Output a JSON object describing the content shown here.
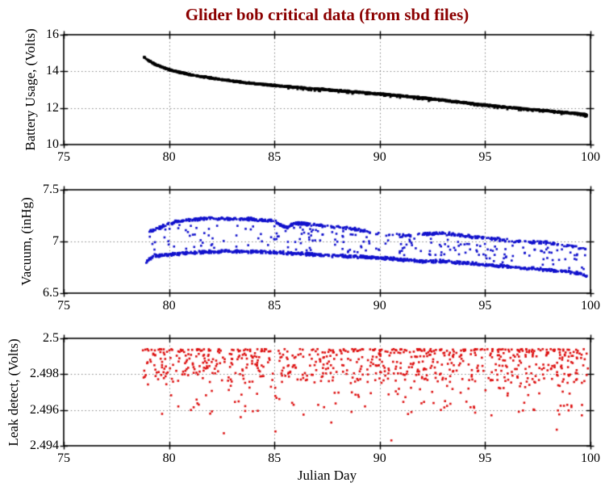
{
  "figure": {
    "title": "Glider bob critical data (from sbd files)",
    "title_color": "#8b0000",
    "background": "#ffffff",
    "grid_color": "#7d7d7d",
    "xlabel": "Julian Day"
  },
  "chart_data": [
    {
      "type": "scatter",
      "name": "battery_usage",
      "ylabel": "Battery Usage, (Volts)",
      "color": "#000000",
      "marker_px": 2.8,
      "xlim": [
        75,
        100
      ],
      "ylim": [
        10,
        16
      ],
      "xticks": [
        75,
        80,
        85,
        90,
        95,
        100
      ],
      "xtick_labels": [
        "75",
        "80",
        "85",
        "90",
        "95",
        "100"
      ],
      "yticks": [
        10,
        12,
        14,
        16
      ],
      "ytick_labels": [
        "10",
        "12",
        "14",
        "16"
      ],
      "grid": true,
      "series": [
        {
          "name": "battery_volts",
          "kind": "trend",
          "seed": 101,
          "n": 1600,
          "x_start": 78.8,
          "x_end": 99.85,
          "noise": 0.032,
          "dropout": {
            "frac": 0.08,
            "min_x": 85,
            "amount": [
              0.02,
              0.1
            ]
          },
          "trend": [
            [
              78.8,
              14.8
            ],
            [
              79.0,
              14.62
            ],
            [
              79.3,
              14.4
            ],
            [
              79.6,
              14.26
            ],
            [
              80.0,
              14.09
            ],
            [
              80.3,
              14.0
            ],
            [
              81,
              13.82
            ],
            [
              82,
              13.63
            ],
            [
              83,
              13.47
            ],
            [
              84,
              13.33
            ],
            [
              85,
              13.23
            ],
            [
              86,
              13.13
            ],
            [
              87,
              13.04
            ],
            [
              88,
              12.95
            ],
            [
              89,
              12.86
            ],
            [
              90,
              12.77
            ],
            [
              91,
              12.66
            ],
            [
              92,
              12.55
            ],
            [
              93,
              12.43
            ],
            [
              94,
              12.29
            ],
            [
              95,
              12.16
            ],
            [
              96,
              12.04
            ],
            [
              97,
              11.94
            ],
            [
              98,
              11.84
            ],
            [
              99,
              11.73
            ],
            [
              99.85,
              11.63
            ]
          ]
        }
      ]
    },
    {
      "type": "scatter",
      "name": "vacuum",
      "ylabel": "Vacuum, (inHg)",
      "color": "#1111cc",
      "marker_px": 2.6,
      "xlim": [
        75,
        100
      ],
      "ylim": [
        6.5,
        7.5
      ],
      "xticks": [
        75,
        80,
        85,
        90,
        95,
        100
      ],
      "xtick_labels": [
        "75",
        "80",
        "85",
        "90",
        "95",
        "100"
      ],
      "yticks": [
        6.5,
        7,
        7.5
      ],
      "ytick_labels": [
        "6.5",
        "7",
        "7.5"
      ],
      "grid": true,
      "series": [
        {
          "name": "vac_lower",
          "kind": "trend",
          "seed": 202,
          "n": 880,
          "x_start": 78.85,
          "x_end": 99.85,
          "noise": 0.012,
          "trend": [
            [
              78.85,
              6.77
            ],
            [
              79.0,
              6.82
            ],
            [
              79.3,
              6.86
            ],
            [
              80,
              6.875
            ],
            [
              81,
              6.89
            ],
            [
              82,
              6.9
            ],
            [
              83,
              6.905
            ],
            [
              84,
              6.9
            ],
            [
              85,
              6.895
            ],
            [
              86,
              6.885
            ],
            [
              87,
              6.872
            ],
            [
              88,
              6.862
            ],
            [
              89,
              6.852
            ],
            [
              90,
              6.842
            ],
            [
              91,
              6.825
            ],
            [
              92,
              6.807
            ],
            [
              93,
              6.81
            ],
            [
              94,
              6.79
            ],
            [
              95,
              6.775
            ],
            [
              96,
              6.76
            ],
            [
              97,
              6.74
            ],
            [
              98,
              6.723
            ],
            [
              99,
              6.705
            ],
            [
              99.5,
              6.69
            ],
            [
              99.85,
              6.66
            ]
          ]
        },
        {
          "name": "vac_upper",
          "kind": "trend",
          "seed": 303,
          "noise": 0.012,
          "segments": [
            [
              78.9,
              80.3,
              40
            ],
            [
              80.3,
              86.6,
              270
            ],
            [
              86.6,
              89.3,
              70
            ],
            [
              89.3,
              90.9,
              12
            ],
            [
              90.9,
              92.2,
              28
            ],
            [
              92.2,
              95.3,
              95
            ],
            [
              95.3,
              98.7,
              80
            ],
            [
              98.7,
              99.8,
              22
            ]
          ],
          "trend": [
            [
              78.9,
              7.08
            ],
            [
              79.5,
              7.13
            ],
            [
              80.3,
              7.19
            ],
            [
              81,
              7.21
            ],
            [
              82,
              7.225
            ],
            [
              83,
              7.22
            ],
            [
              84,
              7.215
            ],
            [
              85,
              7.195
            ],
            [
              85.6,
              7.13
            ],
            [
              86,
              7.18
            ],
            [
              86.6,
              7.165
            ],
            [
              87.5,
              7.15
            ],
            [
              88.5,
              7.13
            ],
            [
              89.3,
              7.1
            ],
            [
              90,
              7.07
            ],
            [
              91,
              7.055
            ],
            [
              92,
              7.07
            ],
            [
              93,
              7.08
            ],
            [
              94,
              7.055
            ],
            [
              95,
              7.035
            ],
            [
              96,
              7.01
            ],
            [
              97,
              6.995
            ],
            [
              98,
              6.985
            ],
            [
              99,
              6.96
            ],
            [
              99.8,
              6.93
            ]
          ]
        },
        {
          "name": "vac_mid",
          "kind": "between",
          "seed": 404,
          "n": 210,
          "x_start": 79,
          "x_end": 99.8,
          "low": "vac_lower",
          "high": "vac_upper",
          "margin": 0.035
        }
      ]
    },
    {
      "type": "scatter",
      "name": "leak_detect",
      "ylabel": "Leak detect, (Volts)",
      "xlabel": "Julian Day",
      "color": "#dd1111",
      "marker_px": 2.6,
      "xlim": [
        75,
        100
      ],
      "ylim": [
        2.494,
        2.5
      ],
      "xticks": [
        75,
        80,
        85,
        90,
        95,
        100
      ],
      "xtick_labels": [
        "75",
        "80",
        "85",
        "90",
        "95",
        "100"
      ],
      "yticks": [
        2.494,
        2.496,
        2.498,
        2.5
      ],
      "ytick_labels": [
        "2.494",
        "2.496",
        "2.498",
        "2.5"
      ],
      "grid": true,
      "series": [
        {
          "name": "leak_volts",
          "kind": "leak",
          "seed": 505,
          "n": 830,
          "x_start": 78.75,
          "x_end": 99.9,
          "dist": {
            "top": 2.4997,
            "main": {
              "frac": 0.78,
              "off": 0.0003,
              "spread": 0.0019,
              "pow": 2.0
            },
            "tail": {
              "off": 0.0012,
              "spread": 0.0028,
              "pow": 1.3
            },
            "min": 2.4952
          },
          "outliers": [
            [
              82.6,
              2.4947
            ],
            [
              85.05,
              2.4948
            ],
            [
              90.55,
              2.4943
            ],
            [
              98.4,
              2.4949
            ],
            [
              95.3,
              2.4957
            ],
            [
              83.4,
              2.4956
            ],
            [
              87.7,
              2.4953
            ],
            [
              92.9,
              2.496
            ],
            [
              96.6,
              2.4959
            ],
            [
              89.3,
              2.4962
            ]
          ]
        }
      ]
    }
  ]
}
